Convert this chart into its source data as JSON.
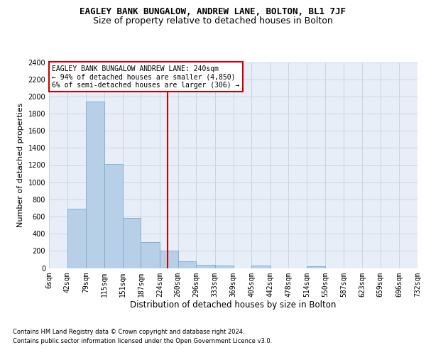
{
  "title1": "EAGLEY BANK BUNGALOW, ANDREW LANE, BOLTON, BL1 7JF",
  "title2": "Size of property relative to detached houses in Bolton",
  "xlabel": "Distribution of detached houses by size in Bolton",
  "ylabel": "Number of detached properties",
  "footnote1": "Contains HM Land Registry data © Crown copyright and database right 2024.",
  "footnote2": "Contains public sector information licensed under the Open Government Licence v3.0.",
  "annotation_line1": "EAGLEY BANK BUNGALOW ANDREW LANE: 240sqm",
  "annotation_line2": "← 94% of detached houses are smaller (4,850)",
  "annotation_line3": "6% of semi-detached houses are larger (306) →",
  "property_size": 240,
  "bar_fill": "#b8cfe8",
  "bar_edge": "#7aaace",
  "vline_color": "#cc0000",
  "grid_color": "#c8d5e5",
  "bg_color": "#e8eef8",
  "annot_bg": "#ffffff",
  "annot_edge": "#cc0000",
  "bin_edges": [
    6,
    42,
    79,
    115,
    151,
    187,
    224,
    260,
    296,
    333,
    369,
    405,
    442,
    478,
    514,
    550,
    587,
    623,
    659,
    696,
    732
  ],
  "counts": [
    0,
    690,
    1940,
    1210,
    580,
    305,
    200,
    75,
    38,
    28,
    0,
    25,
    0,
    0,
    18,
    0,
    0,
    0,
    0,
    0,
    12
  ],
  "ylim": [
    0,
    2400
  ],
  "yticks": [
    0,
    200,
    400,
    600,
    800,
    1000,
    1200,
    1400,
    1600,
    1800,
    2000,
    2200,
    2400
  ],
  "title1_fontsize": 9,
  "title2_fontsize": 9,
  "ylabel_fontsize": 8,
  "xlabel_fontsize": 8.5,
  "tick_fontsize": 7,
  "annot_fontsize": 7,
  "footnote_fontsize": 6
}
